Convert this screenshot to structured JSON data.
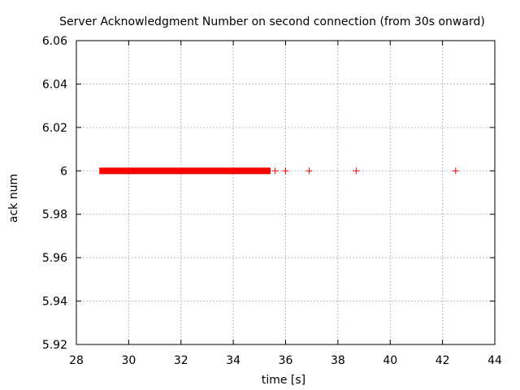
{
  "chart_data": {
    "type": "scatter",
    "title": "Server Acknowledgment Number on second connection (from 30s onward)",
    "xlabel": "time [s]",
    "ylabel": "ack num",
    "xlim": [
      28,
      44
    ],
    "ylim": [
      5.92,
      6.06
    ],
    "xticks": [
      28,
      30,
      32,
      34,
      36,
      38,
      40,
      42,
      44
    ],
    "yticks": [
      5.92,
      5.94,
      5.96,
      5.98,
      6,
      6.02,
      6.04,
      6.06
    ],
    "xtick_labels": [
      "28",
      "30",
      "32",
      "34",
      "36",
      "38",
      "40",
      "42",
      "44"
    ],
    "ytick_labels": [
      "5.92",
      "5.94",
      "5.96",
      "5.98",
      "6",
      "6.02",
      "6.04",
      "6.06"
    ],
    "grid": true,
    "marker": "plus",
    "color": "#ff0000",
    "dense_range": {
      "x_start": 29.0,
      "x_end": 35.3,
      "y": 6
    },
    "series": [
      {
        "x": [
          35.6,
          36.0,
          36.9,
          38.7,
          42.5
        ],
        "y": [
          6,
          6,
          6,
          6,
          6
        ]
      }
    ]
  }
}
